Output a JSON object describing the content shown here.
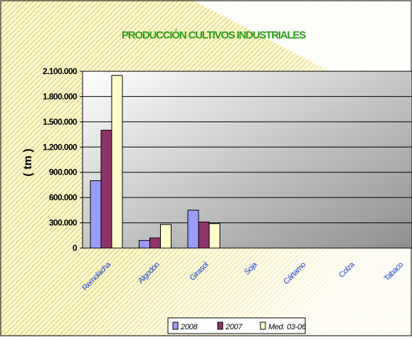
{
  "chart_data": {
    "type": "bar",
    "title": "PRODUCCIÓN CULTIVOS INDUSTRIALES",
    "ylabel": "( tm )",
    "xlabel": "",
    "categories": [
      "Remolacha",
      "Algodón",
      "Girasol",
      "Soja",
      "Cártamo",
      "Colza",
      "Tabaco"
    ],
    "series": [
      {
        "name": "2008",
        "color": "#9b9bfb",
        "values": [
          800000,
          90000,
          450000,
          0,
          0,
          0,
          0
        ]
      },
      {
        "name": "2007",
        "color": "#8e3468",
        "values": [
          1400000,
          120000,
          310000,
          0,
          0,
          0,
          0
        ]
      },
      {
        "name": "Med. 03-06",
        "color": "#ffffcc",
        "values": [
          2050000,
          280000,
          290000,
          0,
          0,
          0,
          0
        ]
      }
    ],
    "ylim": [
      0,
      2100000
    ],
    "yticks": [
      "0",
      "300.000",
      "600.000",
      "900.000",
      "1.200.000",
      "1.500.000",
      "1.800.000",
      "2.100.000"
    ],
    "grid": true,
    "legend_position": "bottom"
  }
}
